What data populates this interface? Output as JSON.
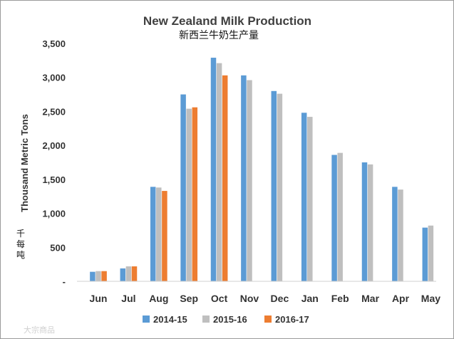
{
  "chart_data": {
    "type": "bar",
    "title": "New Zealand Milk Production",
    "subtitle": "新西兰牛奶生产量",
    "ylabel": "Thousand Metric Tons",
    "ylabel_cn": [
      "千",
      "每",
      "吨"
    ],
    "xlabel": "",
    "ylim": [
      0,
      3500
    ],
    "yticks": [
      {
        "value": 0,
        "label": "-"
      },
      {
        "value": 500,
        "label": "500"
      },
      {
        "value": 1000,
        "label": "1,000"
      },
      {
        "value": 1500,
        "label": "1,500"
      },
      {
        "value": 2000,
        "label": "2,000"
      },
      {
        "value": 2500,
        "label": "2,500"
      },
      {
        "value": 3000,
        "label": "3,000"
      },
      {
        "value": 3500,
        "label": "3,500"
      }
    ],
    "grid": false,
    "legend_position": "bottom",
    "categories": [
      "Jun",
      "Jul",
      "Aug",
      "Sep",
      "Oct",
      "Nov",
      "Dec",
      "Jan",
      "Feb",
      "Mar",
      "Apr",
      "May"
    ],
    "series": [
      {
        "name": "2014-15",
        "color": "#5b9bd5",
        "values": [
          140,
          190,
          1390,
          2750,
          3290,
          3030,
          2800,
          2480,
          1860,
          1750,
          1390,
          790
        ]
      },
      {
        "name": "2015-16",
        "color": "#bfbfbf",
        "values": [
          150,
          220,
          1380,
          2540,
          3210,
          2960,
          2760,
          2420,
          1890,
          1720,
          1350,
          820
        ]
      },
      {
        "name": "2016-17",
        "color": "#ed7d31",
        "values": [
          150,
          220,
          1330,
          2560,
          3030,
          null,
          null,
          null,
          null,
          null,
          null,
          null
        ]
      }
    ]
  },
  "watermark": "大宗商品"
}
